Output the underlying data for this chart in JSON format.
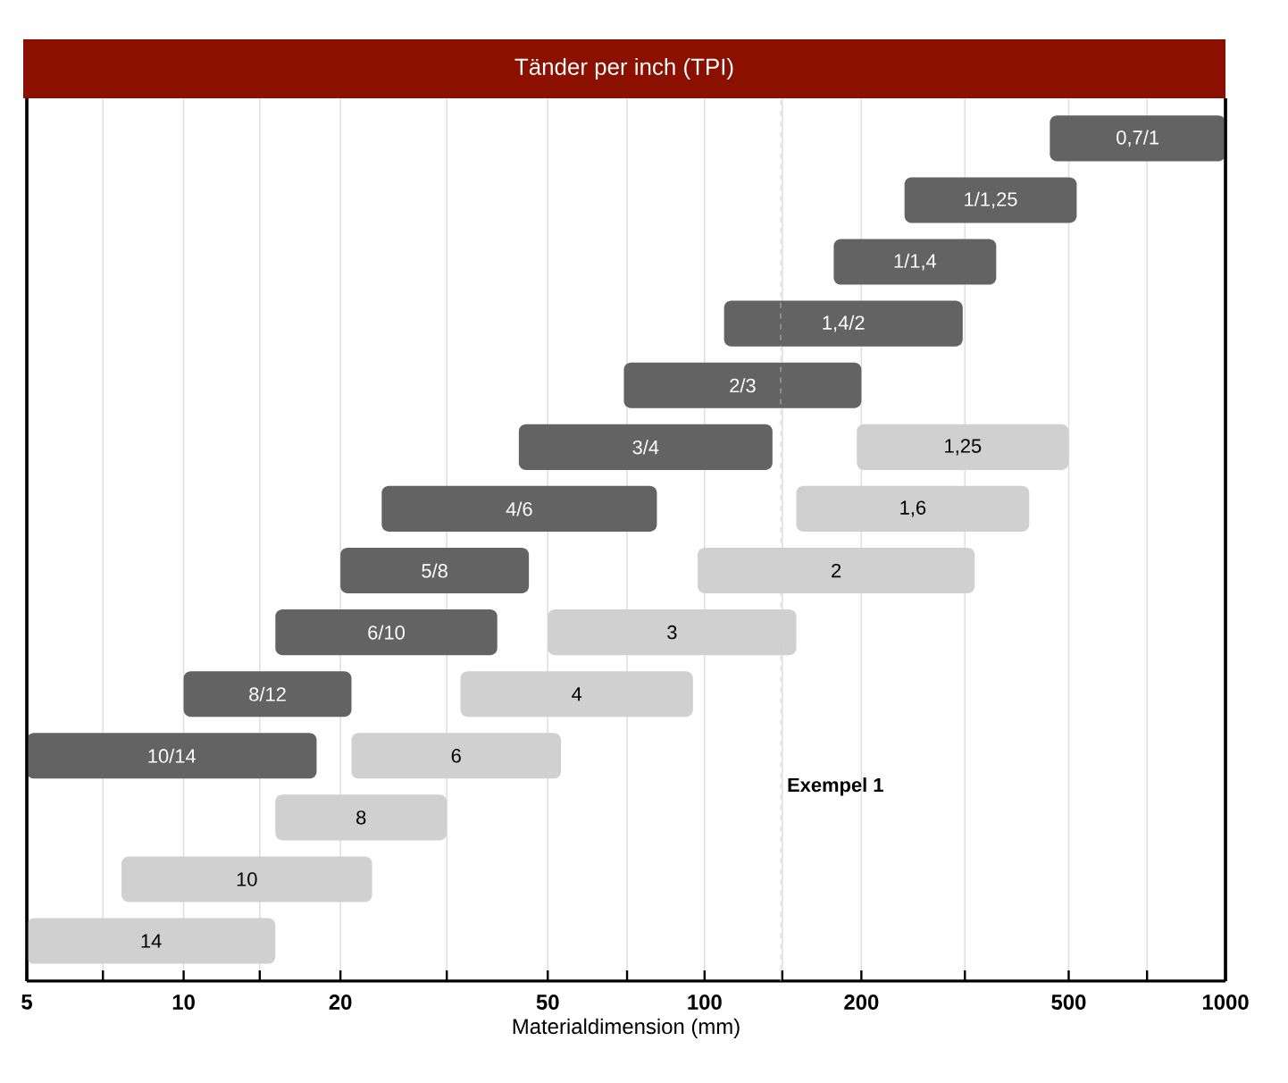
{
  "chart_data": {
    "type": "bar",
    "orientation": "horizontal",
    "title": "Tänder per inch (TPI)",
    "xlabel": "Materialdimension (mm)",
    "categories": [
      null,
      null,
      null,
      null,
      null,
      null,
      null,
      null,
      null,
      null,
      null,
      null,
      null,
      null
    ],
    "log": "x",
    "xlim": [
      5,
      1000
    ],
    "xticks": [
      5,
      {
        "value": 7,
        "label": null
      },
      10,
      {
        "value": 14,
        "label": null
      },
      20,
      {
        "value": 32,
        "label": null
      },
      50,
      {
        "value": 71,
        "label": null
      },
      100,
      {
        "value": 141,
        "label": null
      },
      200,
      {
        "value": 316,
        "label": null
      },
      500,
      {
        "value": 707,
        "label": null
      },
      1000
    ],
    "grid": "x",
    "series": [
      {
        "name": "0,7/1",
        "color": "#636363",
        "base": [
          460,
          null,
          null,
          null,
          null,
          null,
          null,
          null,
          null,
          null,
          null,
          null,
          null,
          null
        ],
        "values": [
          540,
          null,
          null,
          null,
          null,
          null,
          null,
          null,
          null,
          null,
          null,
          null,
          null,
          null
        ]
      },
      {
        "name": "1/1,25",
        "color": "#636363",
        "base": [
          null,
          242,
          null,
          null,
          null,
          null,
          null,
          null,
          null,
          null,
          null,
          null,
          null,
          null
        ],
        "values": [
          null,
          276,
          null,
          null,
          null,
          null,
          null,
          null,
          null,
          null,
          null,
          null,
          null,
          null
        ]
      },
      {
        "name": "1/1,4",
        "color": "#636363",
        "base": [
          null,
          null,
          177,
          null,
          null,
          null,
          null,
          null,
          null,
          null,
          null,
          null,
          null,
          null
        ],
        "values": [
          null,
          null,
          186,
          null,
          null,
          null,
          null,
          null,
          null,
          null,
          null,
          null,
          null,
          null
        ]
      },
      {
        "name": "1,4/2",
        "color": "#636363",
        "base": [
          null,
          null,
          null,
          109,
          null,
          null,
          null,
          null,
          null,
          null,
          null,
          null,
          null,
          null
        ],
        "values": [
          null,
          null,
          null,
          204,
          null,
          null,
          null,
          null,
          null,
          null,
          null,
          null,
          null,
          null
        ]
      },
      {
        "name": "2/3",
        "color": "#636363",
        "base": [
          null,
          null,
          null,
          null,
          70,
          null,
          null,
          null,
          null,
          null,
          null,
          null,
          null,
          null
        ],
        "values": [
          null,
          null,
          null,
          null,
          130,
          null,
          null,
          null,
          null,
          null,
          null,
          null,
          null,
          null
        ]
      },
      {
        "name": "3/4",
        "color": "#636363",
        "base": [
          null,
          null,
          null,
          null,
          null,
          44,
          null,
          null,
          null,
          null,
          null,
          null,
          null,
          null
        ],
        "values": [
          null,
          null,
          null,
          null,
          null,
          91,
          null,
          null,
          null,
          null,
          null,
          null,
          null,
          null
        ]
      },
      {
        "name": "4/6",
        "color": "#636363",
        "base": [
          null,
          null,
          null,
          null,
          null,
          null,
          24,
          null,
          null,
          null,
          null,
          null,
          null,
          null
        ],
        "values": [
          null,
          null,
          null,
          null,
          null,
          null,
          57,
          null,
          null,
          null,
          null,
          null,
          null,
          null
        ]
      },
      {
        "name": "5/8",
        "color": "#636363",
        "base": [
          null,
          null,
          null,
          null,
          null,
          null,
          null,
          20,
          null,
          null,
          null,
          null,
          null,
          null
        ],
        "values": [
          null,
          null,
          null,
          null,
          null,
          null,
          null,
          26,
          null,
          null,
          null,
          null,
          null,
          null
        ]
      },
      {
        "name": "6/10",
        "color": "#636363",
        "base": [
          null,
          null,
          null,
          null,
          null,
          null,
          null,
          null,
          15,
          null,
          null,
          null,
          null,
          null
        ],
        "values": [
          null,
          null,
          null,
          null,
          null,
          null,
          null,
          null,
          25,
          null,
          null,
          null,
          null,
          null
        ]
      },
      {
        "name": "8/12",
        "color": "#636363",
        "base": [
          null,
          null,
          null,
          null,
          null,
          null,
          null,
          null,
          null,
          10,
          null,
          null,
          null,
          null
        ],
        "values": [
          null,
          null,
          null,
          null,
          null,
          null,
          null,
          null,
          null,
          11,
          null,
          null,
          null,
          null
        ]
      },
      {
        "name": "10/14",
        "color": "#636363",
        "base": [
          null,
          null,
          null,
          null,
          null,
          null,
          null,
          null,
          null,
          null,
          5,
          null,
          null,
          null
        ],
        "values": [
          null,
          null,
          null,
          null,
          null,
          null,
          null,
          null,
          null,
          null,
          13,
          null,
          null,
          null
        ]
      },
      {
        "name": "1,25",
        "color": "#d0d0d0",
        "base": [
          null,
          null,
          null,
          null,
          null,
          196,
          null,
          null,
          null,
          null,
          null,
          null,
          null,
          null
        ],
        "values": [
          null,
          null,
          null,
          null,
          null,
          304,
          null,
          null,
          null,
          null,
          null,
          null,
          null,
          null
        ]
      },
      {
        "name": "1,6",
        "color": "#d0d0d0",
        "base": [
          null,
          null,
          null,
          null,
          null,
          null,
          150,
          null,
          null,
          null,
          null,
          null,
          null,
          null
        ],
        "values": [
          null,
          null,
          null,
          null,
          null,
          null,
          270,
          null,
          null,
          null,
          null,
          null,
          null,
          null
        ]
      },
      {
        "name": "2",
        "color": "#d0d0d0",
        "base": [
          null,
          null,
          null,
          null,
          null,
          null,
          null,
          97,
          null,
          null,
          null,
          null,
          null,
          null
        ],
        "values": [
          null,
          null,
          null,
          null,
          null,
          null,
          null,
          233,
          null,
          null,
          null,
          null,
          null,
          null
        ]
      },
      {
        "name": "3",
        "color": "#d0d0d0",
        "base": [
          null,
          null,
          null,
          null,
          null,
          null,
          null,
          null,
          50,
          null,
          null,
          null,
          null,
          null
        ],
        "values": [
          null,
          null,
          null,
          null,
          null,
          null,
          null,
          null,
          100,
          null,
          null,
          null,
          null,
          null
        ]
      },
      {
        "name": "4",
        "color": "#d0d0d0",
        "base": [
          null,
          null,
          null,
          null,
          null,
          null,
          null,
          null,
          null,
          34,
          null,
          null,
          null,
          null
        ],
        "values": [
          null,
          null,
          null,
          null,
          null,
          null,
          null,
          null,
          null,
          61,
          null,
          null,
          null,
          null
        ]
      },
      {
        "name": "6",
        "color": "#d0d0d0",
        "base": [
          null,
          null,
          null,
          null,
          null,
          null,
          null,
          null,
          null,
          null,
          21,
          null,
          null,
          null
        ],
        "values": [
          null,
          null,
          null,
          null,
          null,
          null,
          null,
          null,
          null,
          null,
          32,
          null,
          null,
          null
        ]
      },
      {
        "name": "8",
        "color": "#d0d0d0",
        "base": [
          null,
          null,
          null,
          null,
          null,
          null,
          null,
          null,
          null,
          null,
          null,
          15,
          null,
          null
        ],
        "values": [
          null,
          null,
          null,
          null,
          null,
          null,
          null,
          null,
          null,
          null,
          null,
          17,
          null,
          null
        ]
      },
      {
        "name": "10",
        "color": "#d0d0d0",
        "base": [
          null,
          null,
          null,
          null,
          null,
          null,
          null,
          null,
          null,
          null,
          null,
          null,
          7.6,
          null
        ],
        "values": [
          null,
          null,
          null,
          null,
          null,
          null,
          null,
          null,
          null,
          null,
          null,
          null,
          15.4,
          null
        ]
      },
      {
        "name": "14",
        "color": "#d0d0d0",
        "base": [
          null,
          null,
          null,
          null,
          null,
          null,
          null,
          null,
          null,
          null,
          null,
          null,
          null,
          5
        ],
        "values": [
          null,
          null,
          null,
          null,
          null,
          null,
          null,
          null,
          null,
          null,
          null,
          null,
          null,
          10
        ]
      }
    ],
    "ref_lines": [
      {
        "axis": "x",
        "value": 140,
        "label": "**Exempel 1**",
        "color": "#cccccc",
        "line_style": "dashed"
      }
    ]
  }
}
